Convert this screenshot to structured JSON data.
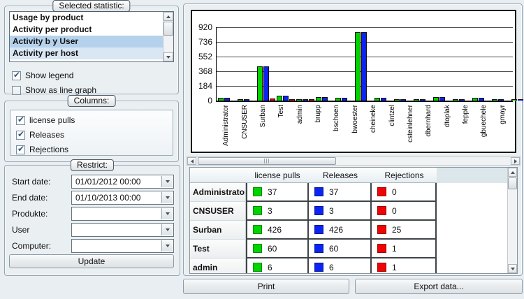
{
  "colors": {
    "green": "#00d400",
    "blue": "#0b24ef",
    "red": "#ee0404",
    "selection_strong": "#b5d2ec",
    "selection_faint": "#d9e7f4"
  },
  "statistic_panel": {
    "title": "Selected statistic:",
    "items": [
      {
        "label": "Usage by product",
        "highlight": "none"
      },
      {
        "label": "Activity per product",
        "highlight": "none"
      },
      {
        "label": "Activity b y User",
        "highlight": "strong"
      },
      {
        "label": "Activity per host",
        "highlight": "faint"
      }
    ],
    "show_legend": {
      "label": "Show legend",
      "checked": true
    },
    "show_line_graph": {
      "label": "Show as line graph",
      "checked": false
    }
  },
  "columns_panel": {
    "title": "Columns:",
    "items": [
      {
        "label": "license pulls",
        "checked": true
      },
      {
        "label": "Releases",
        "checked": true
      },
      {
        "label": "Rejections",
        "checked": true
      }
    ]
  },
  "restrict_panel": {
    "title": "Restrict:",
    "fields": [
      {
        "label": "Start date:",
        "value": "01/01/2012 00:00"
      },
      {
        "label": "End date:",
        "value": "01/10/2013 00:00"
      },
      {
        "label": "Produkte:",
        "value": ""
      },
      {
        "label": "User",
        "value": ""
      },
      {
        "label": "Computer:",
        "value": ""
      }
    ],
    "update_label": "Update"
  },
  "chart_data": {
    "type": "bar",
    "title": "",
    "categories": [
      "Administrator",
      "CNSUSER",
      "Surban",
      "Test",
      "admin",
      "brupp",
      "bschoen",
      "bwoester",
      "cheineke",
      "clintzel",
      "csteinlehner",
      "dbernhard",
      "dtoplak",
      "fepple",
      "gbuechele",
      "gmayr"
    ],
    "series": [
      {
        "name": "license pulls",
        "color_key": "green",
        "values": [
          37,
          3,
          426,
          60,
          6,
          40,
          35,
          860,
          35,
          12,
          4,
          40,
          4,
          35,
          15,
          14
        ]
      },
      {
        "name": "Releases",
        "color_key": "blue",
        "values": [
          37,
          3,
          426,
          60,
          6,
          40,
          35,
          860,
          35,
          12,
          4,
          40,
          4,
          35,
          15,
          14
        ]
      },
      {
        "name": "Rejections",
        "color_key": "red",
        "values": [
          0,
          0,
          25,
          1,
          1,
          0,
          0,
          0,
          0,
          0,
          0,
          0,
          0,
          0,
          0,
          0
        ]
      }
    ],
    "ylabel": "",
    "xlabel": "",
    "ylim": [
      0,
      920
    ],
    "yticks": [
      0,
      184,
      368,
      552,
      736,
      920
    ],
    "grid": true,
    "legend_position": "hidden"
  },
  "table": {
    "headers": [
      "",
      "license pulls",
      "Releases",
      "Rejections"
    ],
    "rows": [
      {
        "name": "Administrator",
        "license_pulls": 37,
        "releases": 37,
        "rejections": 0
      },
      {
        "name": "CNSUSER",
        "license_pulls": 3,
        "releases": 3,
        "rejections": 0
      },
      {
        "name": "Surban",
        "license_pulls": 426,
        "releases": 426,
        "rejections": 25
      },
      {
        "name": "Test",
        "license_pulls": 60,
        "releases": 60,
        "rejections": 1
      },
      {
        "name": "admin",
        "license_pulls": 6,
        "releases": 6,
        "rejections": 1
      }
    ]
  },
  "footer": {
    "print_label": "Print",
    "export_label": "Export data..."
  }
}
